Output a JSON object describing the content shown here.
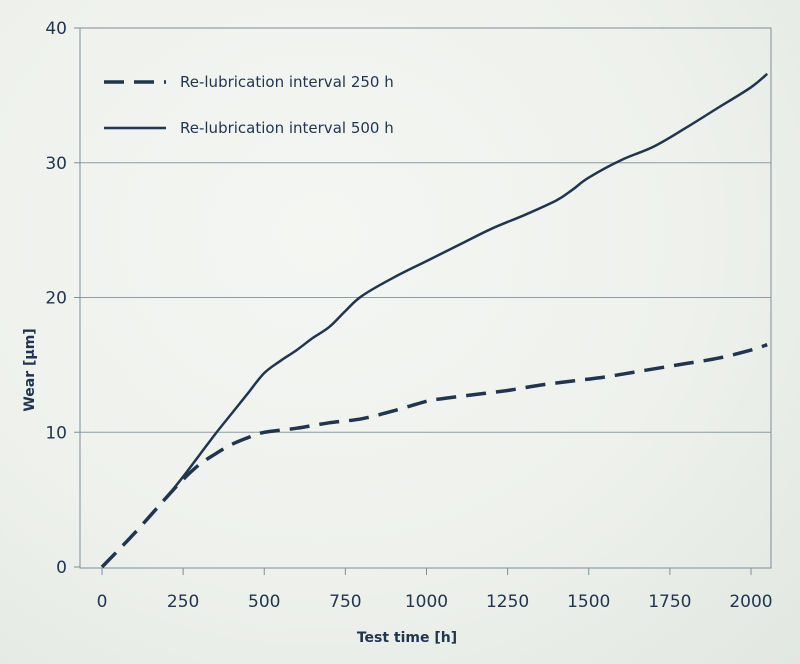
{
  "chart_data": {
    "type": "line",
    "title": "",
    "xlabel": "Test time [h]",
    "ylabel": "Wear [µm]",
    "xlim": [
      0,
      2000
    ],
    "ylim": [
      0,
      40
    ],
    "xticks": [
      0,
      250,
      500,
      750,
      1000,
      1250,
      1500,
      1750,
      2000
    ],
    "yticks": [
      0,
      10,
      20,
      30,
      40
    ],
    "grid": "horizontal",
    "legend_position": "top-left",
    "line_color": "#1f3550",
    "series": [
      {
        "name": "Re-lubrication interval 250 h",
        "style": "dashed",
        "x": [
          0,
          100,
          200,
          250,
          300,
          350,
          400,
          450,
          500,
          600,
          700,
          800,
          900,
          1000,
          1050,
          1150,
          1250,
          1350,
          1450,
          1550,
          1650,
          1750,
          1800,
          1900,
          2000,
          2050
        ],
        "y": [
          0,
          2.5,
          5.2,
          6.5,
          7.6,
          8.4,
          9.1,
          9.6,
          10.0,
          10.3,
          10.7,
          11.0,
          11.6,
          12.3,
          12.5,
          12.8,
          13.1,
          13.5,
          13.8,
          14.1,
          14.5,
          14.9,
          15.1,
          15.5,
          16.1,
          16.5
        ]
      },
      {
        "name": "Re-lubrication interval 500 h",
        "style": "solid",
        "x": [
          200,
          250,
          300,
          350,
          400,
          450,
          500,
          550,
          600,
          650,
          700,
          750,
          800,
          900,
          1000,
          1100,
          1200,
          1300,
          1400,
          1450,
          1500,
          1600,
          1700,
          1800,
          1900,
          2000,
          2050
        ],
        "y": [
          5.2,
          6.7,
          8.3,
          9.9,
          11.4,
          12.9,
          14.4,
          15.3,
          16.1,
          17.0,
          17.8,
          19.0,
          20.1,
          21.5,
          22.7,
          23.9,
          25.1,
          26.1,
          27.2,
          28.0,
          28.9,
          30.2,
          31.2,
          32.6,
          34.1,
          35.6,
          36.6
        ]
      }
    ]
  }
}
